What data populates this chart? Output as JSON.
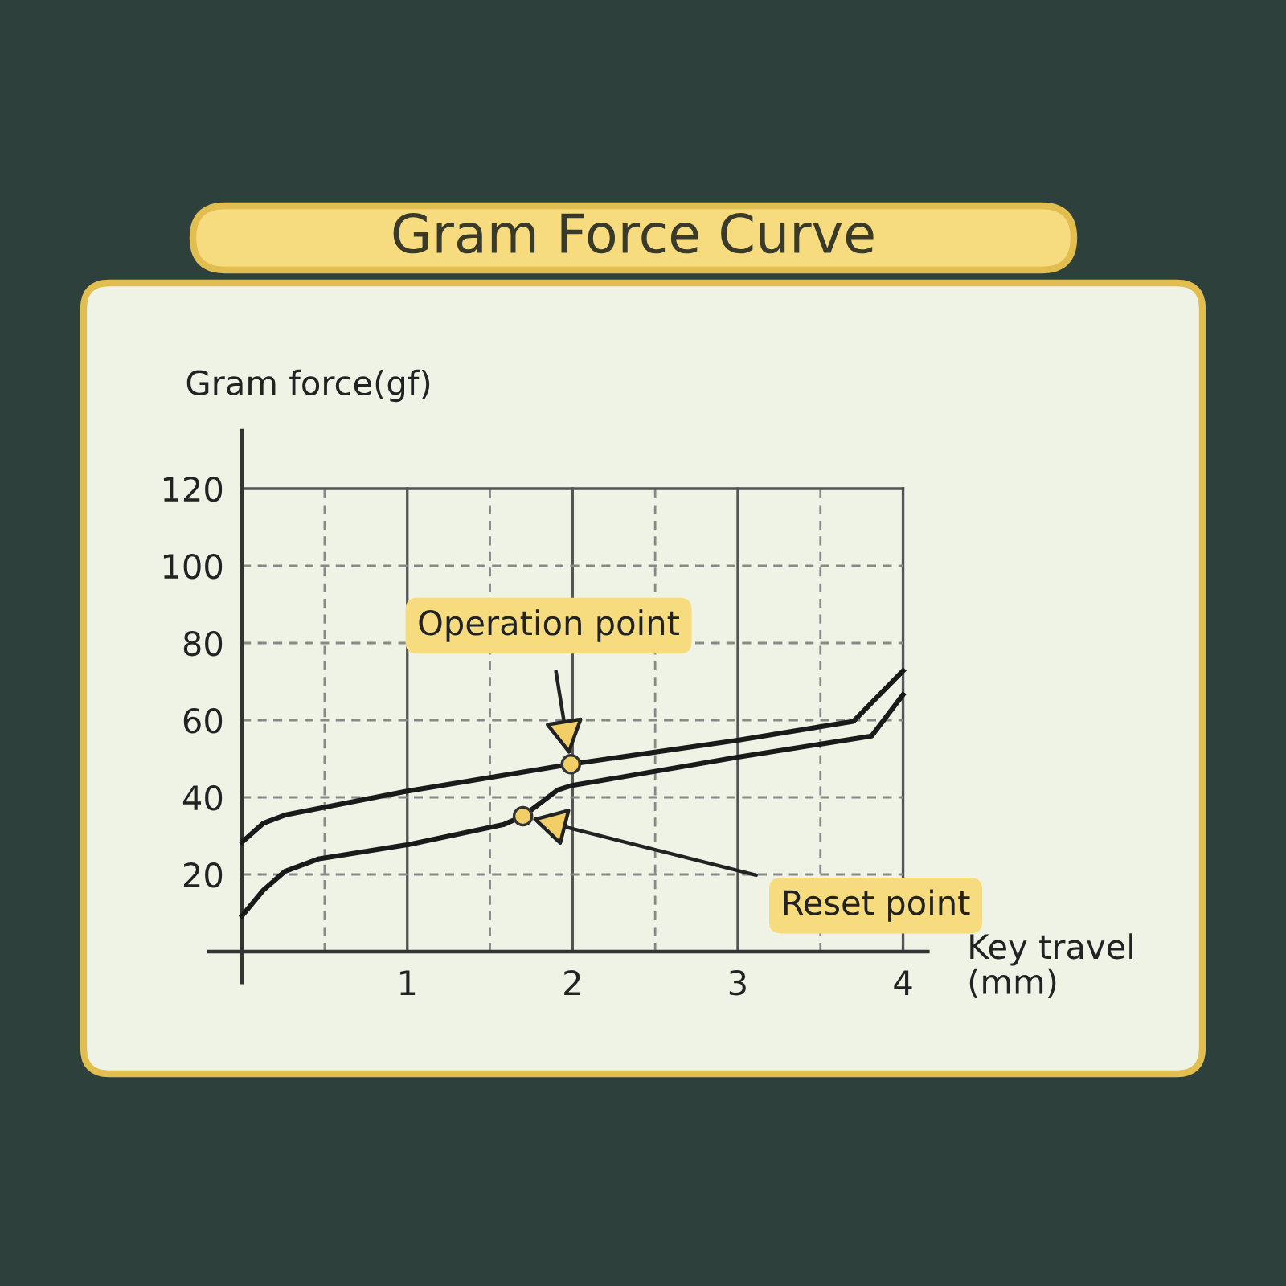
{
  "chart_data": {
    "type": "line",
    "title": "Gram Force Curve",
    "xlabel": "Key travel\n(mm)",
    "ylabel": "Gram force(gf)",
    "series": [
      {
        "color": "#1a1a1a",
        "x": [
          0,
          0.13,
          0.26,
          1.0,
          1.99,
          3.0,
          3.7,
          4.0
        ],
        "values": [
          28.4,
          33.3,
          35.4,
          41.6,
          48.6,
          54.8,
          59.7,
          72.8
        ]
      },
      {
        "color": "#1a1a1a",
        "x": [
          0,
          0.13,
          0.26,
          0.46,
          1.0,
          1.58,
          1.7,
          1.91,
          1.99,
          3.0,
          3.81,
          4.0
        ],
        "values": [
          9.3,
          16,
          20.8,
          24,
          27.7,
          32.9,
          35.1,
          41.9,
          43,
          50.4,
          55.9,
          66.6
        ]
      }
    ],
    "annotations": [
      {
        "text": "Operation point",
        "x": 1.99,
        "y": 48.6
      },
      {
        "text": "Reset point",
        "x": 1.7,
        "y": 35.1
      }
    ],
    "xlim": [
      -0.2,
      4.15
    ],
    "ylim": [
      -8,
      135
    ],
    "xticks": [
      {
        "value": 0.5,
        "label": null
      },
      1,
      {
        "value": 1.5,
        "label": null
      },
      2,
      {
        "value": 2.5,
        "label": null
      },
      3,
      {
        "value": 3.5,
        "label": null
      },
      4
    ],
    "yticks": [
      20,
      40,
      60,
      80,
      100,
      120
    ],
    "grid": true,
    "marker": "none",
    "line_style": "solid"
  }
}
